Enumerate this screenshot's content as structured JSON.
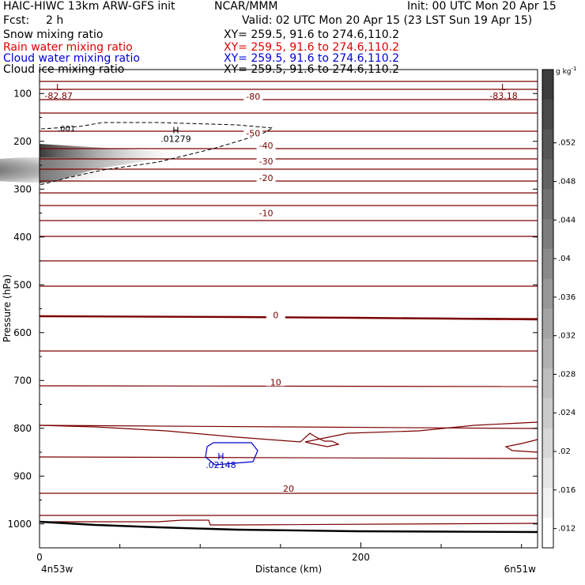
{
  "header": {
    "left_title": "HAIC-HIWC 13km ARW-GFS init",
    "center_title": "NCAR/MMM",
    "init": "Init: 00 UTC Mon 20 Apr 15",
    "fcst_label": "Fcst:",
    "fcst_value": "2 h",
    "valid": "Valid: 02 UTC Mon 20 Apr 15 (23 LST Sun 19 Apr 15)"
  },
  "fields": [
    {
      "label": "Snow mixing ratio",
      "xy": "XY= 259.5, 91.6 to 274.6,110.2",
      "color": "#000000"
    },
    {
      "label": "Rain water mixing ratio",
      "xy": "XY= 259.5, 91.6 to 274.6,110.2",
      "color": "#e00000"
    },
    {
      "label": "Cloud water mixing ratio",
      "xy": "XY= 259.5, 91.6 to 274.6,110.2",
      "color": "#0000dd"
    },
    {
      "label": "Cloud ice mixing ratio",
      "xy": "XY= 259.5, 91.6 to 274.6,110.2",
      "color": "#000000"
    }
  ],
  "colors": {
    "temperature_contour": "#7a0000",
    "cloud_water_contour": "#0000cc",
    "ice_contour": "#000000"
  },
  "chart_data": {
    "type": "heatmap",
    "xlabel": "Distance (km)",
    "ylabel": "Pressure (hPa)",
    "xlim": [
      0,
      310
    ],
    "ylim": [
      1050,
      50
    ],
    "x_ticks": [
      0,
      200
    ],
    "y_ticks": [
      100,
      200,
      300,
      400,
      500,
      600,
      700,
      800,
      900,
      1000
    ],
    "left_endpoint": "4n53w",
    "right_endpoint": "6n51w",
    "colorbar": {
      "unit": "g kg",
      "unit_exp": "-1",
      "ticks": [
        ".012",
        ".016",
        ".02",
        ".024",
        ".028",
        ".032",
        ".036",
        ".04",
        ".044",
        ".048",
        ".052"
      ]
    },
    "temperature_labels": [
      {
        "text": "-80",
        "x": 133,
        "p": 108
      },
      {
        "text": "-50",
        "x": 133,
        "p": 185
      },
      {
        "text": "-40",
        "x": 141,
        "p": 210
      },
      {
        "text": "-30",
        "x": 141,
        "p": 243
      },
      {
        "text": "-20",
        "x": 141,
        "p": 278
      },
      {
        "text": "-10",
        "x": 141,
        "p": 352
      },
      {
        "text": "0",
        "x": 147,
        "p": 565
      },
      {
        "text": "10",
        "x": 147,
        "p": 705
      },
      {
        "text": "20",
        "x": 155,
        "p": 928
      }
    ],
    "extrema": [
      {
        "kind": "L",
        "value": "-82.87",
        "x": 3,
        "p": 93
      },
      {
        "kind": "L",
        "value": "-83.18",
        "x": 280,
        "p": 93
      },
      {
        "kind": "H",
        "value": ".01279",
        "x": 76,
        "p": 183
      },
      {
        "kind": "H",
        "value": ".02148",
        "x": 104,
        "p": 865
      }
    ],
    "ice_contour_label": ".001",
    "ice_max": 0.052
  }
}
